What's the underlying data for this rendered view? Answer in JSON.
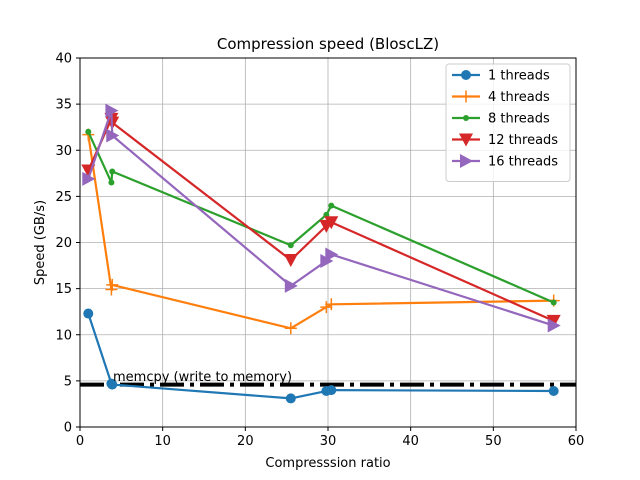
{
  "chart_data": {
    "type": "line",
    "title": "Compression speed (BloscLZ)",
    "xlabel": "Compresssion ratio",
    "ylabel": "Speed (GB/s)",
    "xlim": [
      0,
      60
    ],
    "ylim": [
      0,
      40
    ],
    "xticks": [
      0,
      10,
      20,
      30,
      40,
      50,
      60
    ],
    "yticks": [
      0,
      5,
      10,
      15,
      20,
      25,
      30,
      35,
      40
    ],
    "grid": true,
    "legend_position": "top-right",
    "reference_line": {
      "y": 4.6,
      "label": "memcpy (write to memory)",
      "color": "#000000"
    },
    "series": [
      {
        "name": "1 threads",
        "color": "#1f77b4",
        "marker": "circle",
        "x": [
          1.0,
          3.8,
          3.9,
          25.5,
          29.8,
          30.4,
          57.3
        ],
        "y": [
          12.3,
          4.7,
          4.6,
          3.1,
          3.9,
          4.0,
          3.9
        ]
      },
      {
        "name": "4 threads",
        "color": "#ff7f0e",
        "marker": "plus",
        "x": [
          1.0,
          3.8,
          3.9,
          25.5,
          29.8,
          30.4,
          57.3
        ],
        "y": [
          31.7,
          14.9,
          15.4,
          10.7,
          13.0,
          13.3,
          13.7
        ]
      },
      {
        "name": "8 threads",
        "color": "#2ca02c",
        "marker": "dot",
        "x": [
          1.0,
          3.8,
          3.9,
          25.5,
          29.8,
          30.4,
          57.3
        ],
        "y": [
          32.0,
          26.5,
          27.7,
          19.7,
          23.0,
          24.0,
          13.5
        ]
      },
      {
        "name": "12 threads",
        "color": "#d62728",
        "marker": "triangle-down",
        "x": [
          1.0,
          3.8,
          3.9,
          25.5,
          29.8,
          30.4,
          57.3
        ],
        "y": [
          27.8,
          33.4,
          33.0,
          18.1,
          21.8,
          22.2,
          11.5
        ]
      },
      {
        "name": "16 threads",
        "color": "#9467bd",
        "marker": "triangle-right",
        "x": [
          1.0,
          3.8,
          3.9,
          25.5,
          29.8,
          30.4,
          57.3
        ],
        "y": [
          26.9,
          34.3,
          31.6,
          15.3,
          18.0,
          18.7,
          11.0
        ]
      }
    ]
  }
}
